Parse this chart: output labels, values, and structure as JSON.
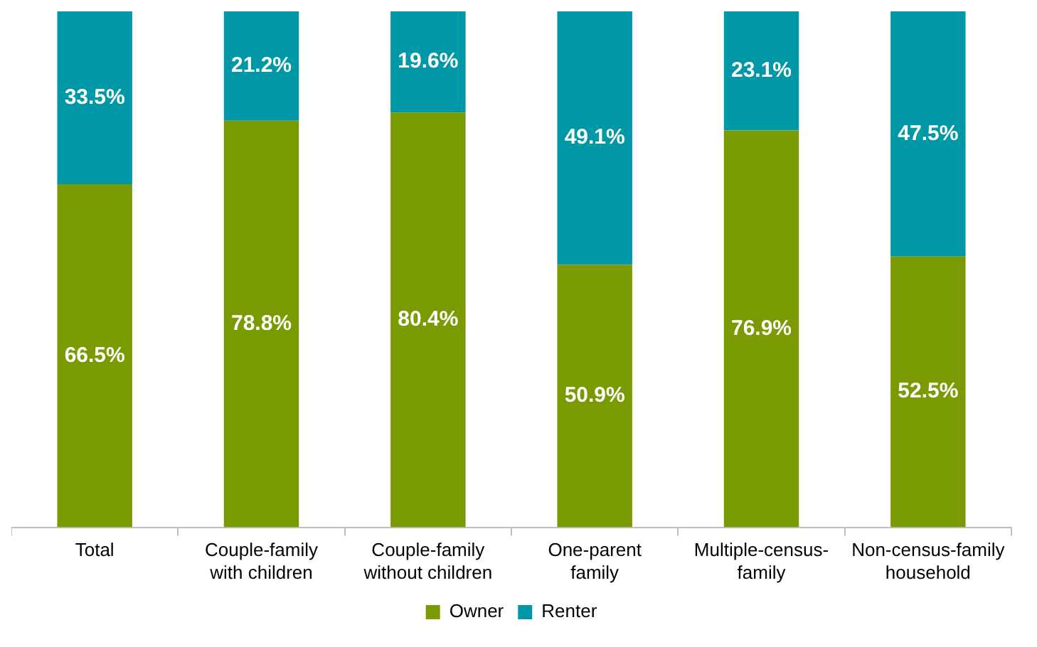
{
  "chart_data": {
    "type": "bar",
    "stacked": true,
    "categories": [
      "Total",
      "Couple-family with children",
      "Couple-family without children",
      "One-parent family",
      "Multiple-census-family",
      "Non-census-family household"
    ],
    "series": [
      {
        "name": "Owner",
        "color": "#7a9a01",
        "values": [
          66.5,
          78.8,
          80.4,
          50.9,
          76.9,
          52.5
        ],
        "value_labels": [
          "66.5%",
          "78.8%",
          "80.4%",
          "50.9%",
          "76.9%",
          "52.5%"
        ]
      },
      {
        "name": "Renter",
        "color": "#0097a7",
        "values": [
          33.5,
          21.2,
          19.6,
          49.1,
          23.1,
          47.5
        ],
        "value_labels": [
          "33.5%",
          "21.2%",
          "19.6%",
          "49.1%",
          "23.1%",
          "47.5%"
        ]
      }
    ],
    "tick_labels": "x",
    "legend": "bottom",
    "grid": false
  }
}
